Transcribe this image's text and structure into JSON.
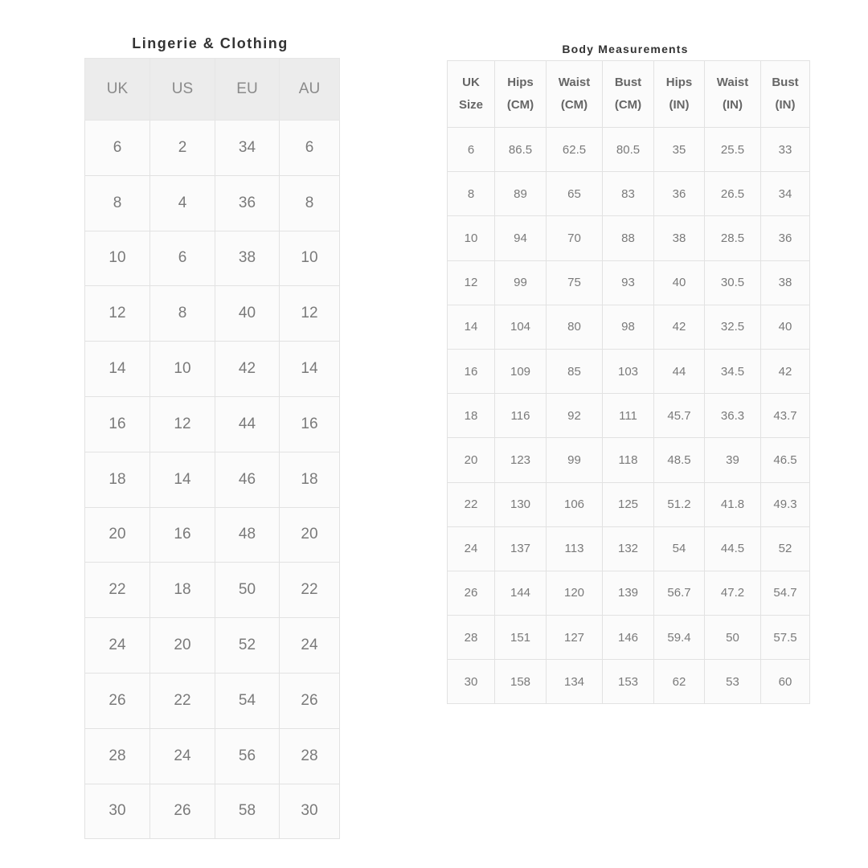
{
  "lingerie": {
    "title": "Lingerie & Clothing",
    "headers": [
      "UK",
      "US",
      "EU",
      "AU"
    ],
    "rows": [
      [
        "6",
        "2",
        "34",
        "6"
      ],
      [
        "8",
        "4",
        "36",
        "8"
      ],
      [
        "10",
        "6",
        "38",
        "10"
      ],
      [
        "12",
        "8",
        "40",
        "12"
      ],
      [
        "14",
        "10",
        "42",
        "14"
      ],
      [
        "16",
        "12",
        "44",
        "16"
      ],
      [
        "18",
        "14",
        "46",
        "18"
      ],
      [
        "20",
        "16",
        "48",
        "20"
      ],
      [
        "22",
        "18",
        "50",
        "22"
      ],
      [
        "24",
        "20",
        "52",
        "24"
      ],
      [
        "26",
        "22",
        "54",
        "26"
      ],
      [
        "28",
        "24",
        "56",
        "28"
      ],
      [
        "30",
        "26",
        "58",
        "30"
      ]
    ]
  },
  "body": {
    "title": "Body Measurements",
    "headers": [
      [
        "UK",
        "Size"
      ],
      [
        "Hips",
        "(CM)"
      ],
      [
        "Waist",
        "(CM)"
      ],
      [
        "Bust",
        "(CM)"
      ],
      [
        "Hips",
        "(IN)"
      ],
      [
        "Waist",
        "(IN)"
      ],
      [
        "Bust",
        "(IN)"
      ]
    ],
    "rows": [
      [
        "6",
        "86.5",
        "62.5",
        "80.5",
        "35",
        "25.5",
        "33"
      ],
      [
        "8",
        "89",
        "65",
        "83",
        "36",
        "26.5",
        "34"
      ],
      [
        "10",
        "94",
        "70",
        "88",
        "38",
        "28.5",
        "36"
      ],
      [
        "12",
        "99",
        "75",
        "93",
        "40",
        "30.5",
        "38"
      ],
      [
        "14",
        "104",
        "80",
        "98",
        "42",
        "32.5",
        "40"
      ],
      [
        "16",
        "109",
        "85",
        "103",
        "44",
        "34.5",
        "42"
      ],
      [
        "18",
        "116",
        "92",
        "111",
        "45.7",
        "36.3",
        "43.7"
      ],
      [
        "20",
        "123",
        "99",
        "118",
        "48.5",
        "39",
        "46.5"
      ],
      [
        "22",
        "130",
        "106",
        "125",
        "51.2",
        "41.8",
        "49.3"
      ],
      [
        "24",
        "137",
        "113",
        "132",
        "54",
        "44.5",
        "52"
      ],
      [
        "26",
        "144",
        "120",
        "139",
        "56.7",
        "47.2",
        "54.7"
      ],
      [
        "28",
        "151",
        "127",
        "146",
        "59.4",
        "50",
        "57.5"
      ],
      [
        "30",
        "158",
        "134",
        "153",
        "62",
        "53",
        "60"
      ]
    ]
  }
}
